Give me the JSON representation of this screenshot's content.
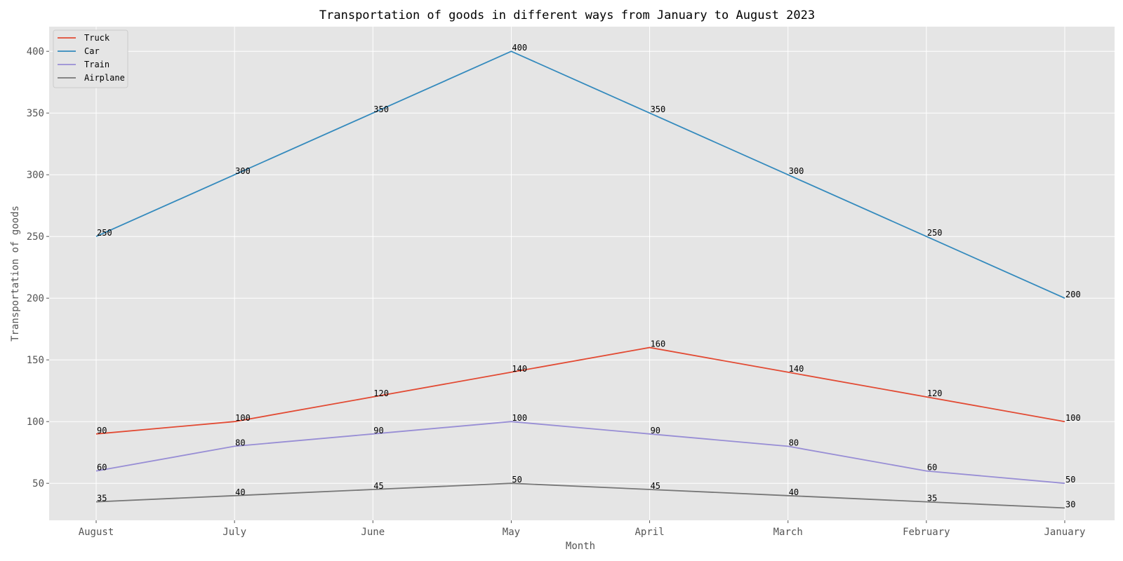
{
  "chart_data": {
    "type": "line",
    "title": "Transportation of goods in different ways from January to August 2023",
    "xlabel": "Month",
    "ylabel": "Transportation of goods",
    "categories": [
      "August",
      "July",
      "June",
      "May",
      "April",
      "March",
      "February",
      "January"
    ],
    "ylim": [
      20,
      420
    ],
    "yticks": [
      50,
      100,
      150,
      200,
      250,
      300,
      350,
      400
    ],
    "grid": true,
    "legend_position": "top-left",
    "background": "#e5e5e5",
    "series": [
      {
        "name": "Truck",
        "color": "#e24a33",
        "values": [
          90,
          100,
          120,
          140,
          160,
          140,
          120,
          100
        ]
      },
      {
        "name": "Car",
        "color": "#348abd",
        "values": [
          250,
          300,
          350,
          400,
          350,
          300,
          250,
          200
        ]
      },
      {
        "name": "Train",
        "color": "#988ed5",
        "values": [
          60,
          80,
          90,
          100,
          90,
          80,
          60,
          50
        ]
      },
      {
        "name": "Airplane",
        "color": "#777777",
        "values": [
          35,
          40,
          45,
          50,
          45,
          40,
          35,
          30
        ]
      }
    ]
  }
}
